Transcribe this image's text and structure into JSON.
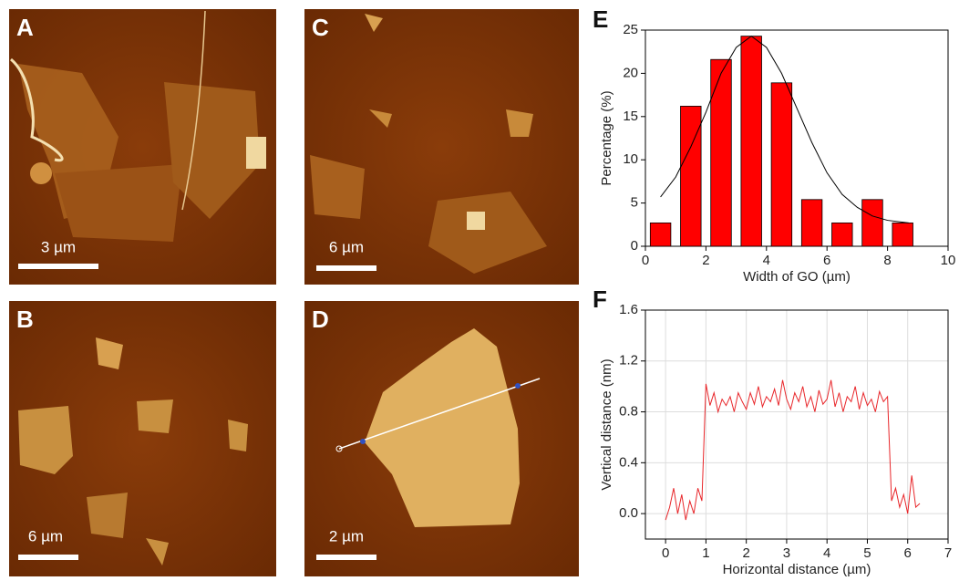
{
  "panels": [
    {
      "label": "A",
      "scale": "3 µm"
    },
    {
      "label": "B",
      "scale": "6 µm"
    },
    {
      "label": "C",
      "scale": "6 µm"
    },
    {
      "label": "D",
      "scale": "2 µm"
    }
  ],
  "chart_data": [
    {
      "type": "bar",
      "panel_label": "E",
      "x_label": "Width of GO (µm)",
      "y_label": "Percentage (%)",
      "x": [
        0.5,
        1.5,
        2.5,
        3.5,
        4.5,
        5.5,
        6.5,
        7.5,
        8.5
      ],
      "values": [
        2.7,
        16.2,
        21.6,
        24.3,
        18.9,
        5.4,
        2.7,
        5.4,
        2.7
      ],
      "color": "#ff0000",
      "fit": {
        "color": "#000000",
        "x": [
          0.5,
          1,
          1.5,
          2,
          2.5,
          3,
          3.5,
          4,
          4.5,
          5,
          5.5,
          6,
          6.5,
          7,
          7.5,
          8,
          8.7
        ],
        "values": [
          5.7,
          8,
          11.5,
          15.5,
          20,
          23,
          24.3,
          23,
          20,
          16,
          12,
          8.5,
          6,
          4.5,
          3.5,
          3,
          2.7
        ]
      },
      "xlim": [
        0,
        10
      ],
      "xticks": [
        0,
        2,
        4,
        6,
        8,
        10
      ],
      "ylim": [
        0,
        25
      ],
      "yticks": [
        0,
        5,
        10,
        15,
        20,
        25
      ]
    },
    {
      "type": "line",
      "panel_label": "F",
      "x_label": "Horizontal distance (µm)",
      "y_label": "Vertical distance (nm)",
      "color": "#e8262a",
      "grid": true,
      "x": [
        0,
        0.1,
        0.2,
        0.3,
        0.4,
        0.5,
        0.6,
        0.7,
        0.8,
        0.9,
        1,
        1.1,
        1.2,
        1.3,
        1.4,
        1.5,
        1.6,
        1.7,
        1.8,
        1.9,
        2,
        2.1,
        2.2,
        2.3,
        2.4,
        2.5,
        2.6,
        2.7,
        2.8,
        2.9,
        3,
        3.1,
        3.2,
        3.3,
        3.4,
        3.5,
        3.6,
        3.7,
        3.8,
        3.9,
        4,
        4.1,
        4.2,
        4.3,
        4.4,
        4.5,
        4.6,
        4.7,
        4.8,
        4.9,
        5,
        5.1,
        5.2,
        5.3,
        5.4,
        5.5,
        5.6,
        5.7,
        5.8,
        5.9,
        6,
        6.1,
        6.2,
        6.3
      ],
      "values": [
        -0.05,
        0.05,
        0.2,
        0,
        0.15,
        -0.05,
        0.1,
        0,
        0.2,
        0.1,
        1.02,
        0.85,
        0.95,
        0.8,
        0.9,
        0.85,
        0.92,
        0.8,
        0.95,
        0.88,
        0.82,
        0.95,
        0.86,
        1,
        0.84,
        0.92,
        0.88,
        0.98,
        0.85,
        1.05,
        0.9,
        0.82,
        0.95,
        0.88,
        1,
        0.84,
        0.92,
        0.8,
        0.97,
        0.86,
        0.9,
        1.05,
        0.84,
        0.95,
        0.8,
        0.92,
        0.88,
        1,
        0.82,
        0.95,
        0.85,
        0.9,
        0.8,
        0.96,
        0.88,
        0.92,
        0.1,
        0.2,
        0.05,
        0.15,
        0,
        0.3,
        0.05,
        0.08
      ],
      "xlim": [
        -0.5,
        7
      ],
      "xticks": [
        0,
        1,
        2,
        3,
        4,
        5,
        6,
        7
      ],
      "ylim": [
        -0.2,
        1.6
      ],
      "yticks": [
        {
          "value": 0,
          "label": "0.0"
        },
        0.4,
        0.8,
        1.2,
        1.6
      ]
    }
  ]
}
